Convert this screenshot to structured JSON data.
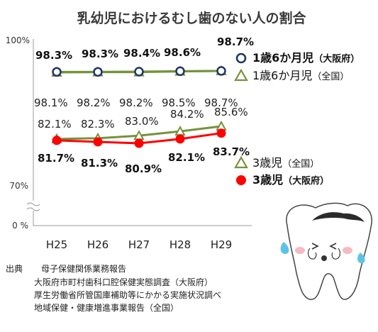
{
  "title": "乳幼児におけるむし歯のない人の割合",
  "colors": {
    "osaka_1y6": "#1f3864",
    "national": "#76923c",
    "osaka_3y": "#ff0000",
    "axis": "#999999"
  },
  "chart_data": {
    "type": "line",
    "title": "乳幼児におけるむし歯のない人の割合",
    "categories": [
      "H25",
      "H26",
      "H27",
      "H28",
      "H29"
    ],
    "y_axis_ticks": [
      "100%",
      "70%",
      "0 %"
    ],
    "y_axis_break": true,
    "grid": false,
    "series": [
      {
        "key": "osaka_1y6",
        "name": "1歳6か月児（大阪府）",
        "name_main": "1歳6か月児",
        "name_sub": "（大阪府）",
        "values": [
          98.3,
          98.3,
          98.4,
          98.6,
          98.7
        ],
        "labels": [
          "98.3%",
          "98.3%",
          "98.4%",
          "98.6%",
          "98.7%"
        ],
        "marker": "circle-open"
      },
      {
        "key": "national_1y6",
        "name": "1歳6か月児（全国）",
        "name_main": "1歳6か月児",
        "name_sub": "（全国）",
        "values": [
          98.1,
          98.2,
          98.2,
          98.5,
          98.7
        ],
        "labels": [
          "98.1%",
          "98.2%",
          "98.2%",
          "98.5%",
          "98.7%"
        ],
        "marker": "triangle-open"
      },
      {
        "key": "national_3y",
        "name": "3歳児（全国）",
        "name_main": "3歳児",
        "name_sub": "（全国）",
        "values": [
          82.1,
          82.3,
          83.0,
          84.2,
          85.6
        ],
        "labels": [
          "82.1%",
          "82.3%",
          "83.0%",
          "84.2%",
          "85.6%"
        ],
        "marker": "triangle-open"
      },
      {
        "key": "osaka_3y",
        "name": "3歳児（大阪府）",
        "name_main": "3歳児",
        "name_sub": "（大阪府）",
        "values": [
          81.7,
          81.3,
          80.9,
          82.1,
          83.7
        ],
        "labels": [
          "81.7%",
          "81.3%",
          "80.9%",
          "82.1%",
          "83.7%"
        ],
        "marker": "circle-filled"
      }
    ]
  },
  "source": {
    "label": "出典",
    "lines": [
      "母子保健関係業務報告",
      "大阪府市町村歯科口腔保健実態調査（大阪府）",
      "厚生労働省所管国庫補助等にかかる実施状況調べ",
      "地域保健・健康増進事業報告（全国）"
    ]
  }
}
